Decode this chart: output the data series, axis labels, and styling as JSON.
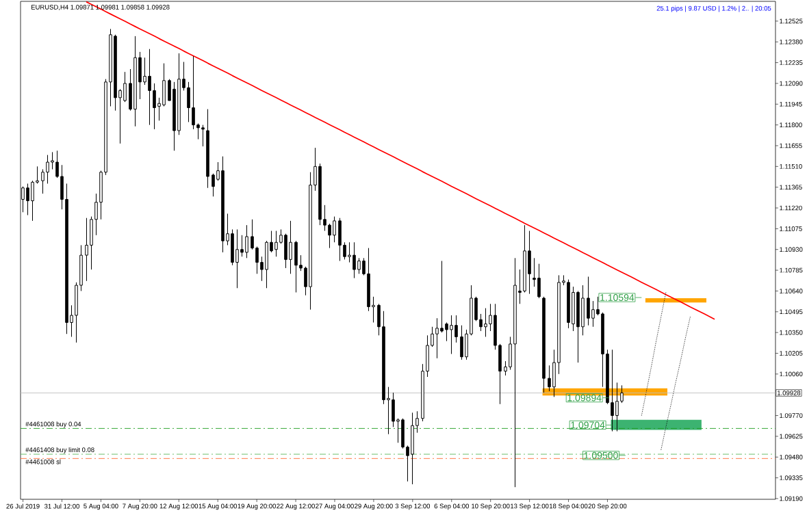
{
  "chart_data": {
    "type": "candlestick",
    "title": "EURUSD,H4 1.09871 1.09981 1.09858 1.09928",
    "color": "#000000",
    "categories": [
      "26 Jul 2019",
      null,
      null,
      null,
      null,
      null,
      null,
      null,
      "31 Jul 12:00",
      null,
      null,
      null,
      null,
      null,
      null,
      null,
      "5 Aug 04:00",
      null,
      null,
      null,
      null,
      null,
      null,
      null,
      "7 Aug 20:00",
      null,
      null,
      null,
      null,
      null,
      null,
      null,
      "12 Aug 12:00",
      null,
      null,
      null,
      null,
      null,
      null,
      null,
      "15 Aug 04:00",
      null,
      null,
      null,
      null,
      null,
      null,
      null,
      "19 Aug 20:00",
      null,
      null,
      null,
      null,
      null,
      null,
      null,
      "22 Aug 12:00",
      null,
      null,
      null,
      null,
      null,
      null,
      null,
      "27 Aug 04:00",
      null,
      null,
      null,
      null,
      null,
      null,
      null,
      "29 Aug 20:00",
      null,
      null,
      null,
      null,
      null,
      null,
      null,
      "3 Sep 12:00",
      null,
      null,
      null,
      null,
      null,
      null,
      null,
      "6 Sep 04:00",
      null,
      null,
      null,
      null,
      null,
      null,
      null,
      "10 Sep 20:00",
      null,
      null,
      null,
      null,
      null,
      null,
      null,
      "13 Sep 12:00",
      null,
      null,
      null,
      null,
      null,
      null,
      null,
      "18 Sep 04:00",
      null,
      null,
      null,
      null,
      null,
      null,
      null,
      "20 Sep 20:00",
      null,
      null,
      null,
      null,
      null,
      null,
      null,
      null,
      null,
      null,
      null,
      null,
      null,
      null,
      null,
      null,
      null,
      null,
      null,
      null,
      null,
      null,
      null,
      null,
      null,
      null,
      null,
      null,
      null,
      null,
      null,
      null,
      null,
      null
    ],
    "ohlc": [
      [
        1.1128,
        1.1137,
        1.1119,
        1.1136
      ],
      [
        1.1136,
        1.1139,
        1.1117,
        1.1127
      ],
      [
        1.1127,
        1.1141,
        1.1113,
        1.114
      ],
      [
        1.114,
        1.1151,
        1.1139,
        1.1141
      ],
      [
        1.1141,
        1.1149,
        1.1132,
        1.1147
      ],
      [
        1.1147,
        1.1159,
        1.1139,
        1.1154
      ],
      [
        1.1154,
        1.1161,
        1.1149,
        1.1155
      ],
      [
        1.1154,
        1.1162,
        1.1143,
        1.1144
      ],
      [
        1.1144,
        1.1152,
        1.1121,
        1.1128
      ],
      [
        1.1128,
        1.1139,
        1.1034,
        1.1042
      ],
      [
        1.1042,
        1.1054,
        1.1032,
        1.1047
      ],
      [
        1.1047,
        1.107,
        1.1028,
        1.1068
      ],
      [
        1.1068,
        1.1096,
        1.1064,
        1.1089
      ],
      [
        1.1089,
        1.1115,
        1.1071,
        1.1096
      ],
      [
        1.1096,
        1.1116,
        1.1079,
        1.1114
      ],
      [
        1.1114,
        1.1132,
        1.1103,
        1.1126
      ],
      [
        1.1126,
        1.1148,
        1.1114,
        1.1147
      ],
      [
        1.1147,
        1.1212,
        1.1145,
        1.121
      ],
      [
        1.121,
        1.1247,
        1.1193,
        1.1243
      ],
      [
        1.1242,
        1.1243,
        1.119,
        1.1199
      ],
      [
        1.1199,
        1.1205,
        1.1167,
        1.1204
      ],
      [
        1.1197,
        1.1217,
        1.1196,
        1.1209
      ],
      [
        1.1209,
        1.1219,
        1.119,
        1.1191
      ],
      [
        1.1191,
        1.1242,
        1.1179,
        1.1227
      ],
      [
        1.1227,
        1.1231,
        1.1198,
        1.121
      ],
      [
        1.121,
        1.1227,
        1.1208,
        1.1214
      ],
      [
        1.1214,
        1.1233,
        1.118,
        1.1204
      ],
      [
        1.1204,
        1.1209,
        1.1177,
        1.1192
      ],
      [
        1.1193,
        1.1199,
        1.1183,
        1.1195
      ],
      [
        1.1194,
        1.1223,
        1.1193,
        1.1211
      ],
      [
        1.1211,
        1.1212,
        1.1197,
        1.1197
      ],
      [
        1.1205,
        1.121,
        1.1162,
        1.1176
      ],
      [
        1.1176,
        1.123,
        1.1173,
        1.1212
      ],
      [
        1.1212,
        1.1224,
        1.1204,
        1.1206
      ],
      [
        1.1206,
        1.121,
        1.1182,
        1.1192
      ],
      [
        1.1192,
        1.1228,
        1.1177,
        1.118
      ],
      [
        1.118,
        1.1181,
        1.117,
        1.1178
      ],
      [
        1.1178,
        1.118,
        1.1165,
        1.1177
      ],
      [
        1.1176,
        1.1191,
        1.1136,
        1.1144
      ],
      [
        1.1145,
        1.1146,
        1.113,
        1.1137
      ],
      [
        1.1142,
        1.1154,
        1.1141,
        1.1148
      ],
      [
        1.1148,
        1.1158,
        1.1091,
        1.1099
      ],
      [
        1.1099,
        1.1118,
        1.1096,
        1.1104
      ],
      [
        1.1104,
        1.1107,
        1.1082,
        1.1084
      ],
      [
        1.1084,
        1.1107,
        1.1066,
        1.1093
      ],
      [
        1.1093,
        1.1103,
        1.1088,
        1.1091
      ],
      [
        1.1091,
        1.111,
        1.1087,
        1.1102
      ],
      [
        1.1102,
        1.1114,
        1.1093,
        1.1094
      ],
      [
        1.1094,
        1.1095,
        1.1076,
        1.1084
      ],
      [
        1.1084,
        1.1088,
        1.1071,
        1.1079
      ],
      [
        1.1079,
        1.1099,
        1.1066,
        1.1098
      ],
      [
        1.1098,
        1.1106,
        1.1091,
        1.1092
      ],
      [
        1.1093,
        1.1106,
        1.1088,
        1.1098
      ],
      [
        1.1098,
        1.1107,
        1.1097,
        1.1103
      ],
      [
        1.1103,
        1.1104,
        1.108,
        1.1086
      ],
      [
        1.1086,
        1.1113,
        1.1076,
        1.1098
      ],
      [
        1.1098,
        1.1099,
        1.1063,
        1.1082
      ],
      [
        1.1082,
        1.1089,
        1.1078,
        1.108
      ],
      [
        1.108,
        1.1081,
        1.1061,
        1.1067
      ],
      [
        1.1067,
        1.1147,
        1.1051,
        1.1138
      ],
      [
        1.1138,
        1.1164,
        1.1134,
        1.1151
      ],
      [
        1.1151,
        1.1153,
        1.111,
        1.1114
      ],
      [
        1.1114,
        1.1124,
        1.1106,
        1.111
      ],
      [
        1.111,
        1.1111,
        1.1094,
        1.1103
      ],
      [
        1.1103,
        1.1116,
        1.1098,
        1.1113
      ],
      [
        1.1113,
        1.1115,
        1.1085,
        1.1096
      ],
      [
        1.1096,
        1.1098,
        1.1086,
        1.1088
      ],
      [
        1.1088,
        1.1098,
        1.1084,
        1.1089
      ],
      [
        1.1089,
        1.1098,
        1.1073,
        1.1079
      ],
      [
        1.1079,
        1.1087,
        1.1076,
        1.1085
      ],
      [
        1.1085,
        1.1087,
        1.1075,
        1.1076
      ],
      [
        1.1076,
        1.1094,
        1.105,
        1.1053
      ],
      [
        1.1053,
        1.106,
        1.1042,
        1.1054
      ],
      [
        1.1054,
        1.1055,
        1.1033,
        1.1039
      ],
      [
        1.1039,
        1.105,
        1.0985,
        1.0988
      ],
      [
        1.0988,
        1.0997,
        1.0964,
        1.0989
      ],
      [
        1.0988,
        1.0993,
        1.0969,
        1.0973
      ],
      [
        1.0973,
        1.0975,
        1.0958,
        1.0974
      ],
      [
        1.0974,
        1.0975,
        1.0954,
        1.0955
      ],
      [
        1.0955,
        1.0956,
        1.0931,
        1.0949
      ],
      [
        1.095,
        1.0979,
        1.0929,
        1.097
      ],
      [
        1.097,
        1.098,
        1.0965,
        1.0975
      ],
      [
        1.0975,
        1.1013,
        1.0973,
        1.1008
      ],
      [
        1.1008,
        1.1033,
        1.1004,
        1.1026
      ],
      [
        1.1026,
        1.1039,
        1.1025,
        1.1034
      ],
      [
        1.1034,
        1.1045,
        1.1017,
        1.1038
      ],
      [
        1.1038,
        1.1085,
        1.1035,
        1.1036
      ],
      [
        1.1041,
        1.1042,
        1.1029,
        1.1037
      ],
      [
        1.1037,
        1.1047,
        1.102,
        1.104
      ],
      [
        1.104,
        1.1047,
        1.1028,
        1.1032
      ],
      [
        1.1032,
        1.104,
        1.1016,
        1.1018
      ],
      [
        1.1018,
        1.1037,
        1.1016,
        1.1034
      ],
      [
        1.1034,
        1.1068,
        1.1033,
        1.1059
      ],
      [
        1.1059,
        1.106,
        1.1043,
        1.1044
      ],
      [
        1.1044,
        1.1048,
        1.1036,
        1.1039
      ],
      [
        1.1039,
        1.1052,
        1.1032,
        1.1041
      ],
      [
        1.1041,
        1.1055,
        1.1036,
        1.1047
      ],
      [
        1.1047,
        1.1055,
        1.1023,
        1.1026
      ],
      [
        1.1026,
        1.1027,
        1.0985,
        1.1008
      ],
      [
        1.1008,
        1.1015,
        1.1005,
        1.1011
      ],
      [
        1.1011,
        1.1032,
        1.1009,
        1.1027
      ],
      [
        1.1027,
        1.1087,
        1.0927,
        1.1068
      ],
      [
        1.1064,
        1.1079,
        1.1055,
        1.1063
      ],
      [
        1.1064,
        1.111,
        1.1063,
        1.1092
      ],
      [
        1.1092,
        1.1106,
        1.1062,
        1.1076
      ],
      [
        1.1073,
        1.1087,
        1.1067,
        1.1072
      ],
      [
        1.1073,
        1.1083,
        1.1059,
        1.106
      ],
      [
        1.1059,
        1.106,
        1.0993,
        1.1003
      ],
      [
        1.1003,
        1.1012,
        1.0994,
        1.0997
      ],
      [
        1.0997,
        1.1023,
        1.099,
        1.1014
      ],
      [
        1.1014,
        1.1075,
        1.1006,
        1.107
      ],
      [
        1.107,
        1.1075,
        1.1068,
        1.1071
      ],
      [
        1.107,
        1.1072,
        1.1038,
        1.1042
      ],
      [
        1.1041,
        1.1067,
        1.1036,
        1.1063
      ],
      [
        1.1063,
        1.1064,
        1.1014,
        1.1039
      ],
      [
        1.1039,
        1.1068,
        1.1033,
        1.1059
      ],
      [
        1.1059,
        1.1074,
        1.104,
        1.1045
      ],
      [
        1.1045,
        1.1057,
        1.1039,
        1.1051
      ],
      [
        1.1051,
        1.106,
        1.1047,
        1.1048
      ],
      [
        1.1048,
        1.1049,
        1.0997,
        1.102
      ],
      [
        1.102,
        1.1023,
        1.0985,
        1.0986
      ],
      [
        1.0986,
        1.1023,
        1.0966,
        1.0977
      ],
      [
        1.0977,
        1.1,
        1.0966,
        1.0987
      ],
      [
        1.09871,
        1.09981,
        1.09858,
        1.09928
      ],
      null,
      null,
      null,
      null,
      null,
      null,
      null,
      null,
      null,
      null,
      null,
      null,
      null,
      null,
      null,
      null,
      null,
      null,
      null,
      null,
      null,
      null,
      null,
      null,
      null,
      null,
      null,
      null,
      null,
      null,
      null
    ],
    "series": [
      {
        "type": "line",
        "color": "#ff0000",
        "values": [
          null,
          null,
          null,
          null,
          null,
          null,
          null,
          null,
          null,
          null,
          null,
          null,
          null,
          1.1266,
          1.12643,
          1.12626,
          1.12609,
          1.12591,
          1.12574,
          1.12557,
          1.1254,
          1.12523,
          1.12505,
          1.12488,
          1.12471,
          1.12454,
          1.12437,
          1.1242,
          1.12402,
          1.12385,
          1.12368,
          1.12351,
          1.12334,
          1.12316,
          1.12299,
          1.12282,
          1.12265,
          1.12248,
          1.1223,
          1.12213,
          1.12196,
          1.12179,
          1.12162,
          1.12144,
          1.12127,
          1.1211,
          1.12093,
          1.12076,
          1.12059,
          1.12041,
          1.12024,
          1.12007,
          1.1199,
          1.11973,
          1.11956,
          1.11938,
          1.11921,
          1.11904,
          1.11887,
          1.1187,
          1.11852,
          1.11835,
          1.11818,
          1.11801,
          1.11784,
          1.11767,
          1.11749,
          1.11732,
          1.11715,
          1.11698,
          1.11681,
          1.11663,
          1.11646,
          1.11629,
          1.11612,
          1.11595,
          1.11578,
          1.1156,
          1.11543,
          1.11526,
          1.11509,
          1.11492,
          1.11474,
          1.11457,
          1.1144,
          1.11423,
          1.11406,
          1.11389,
          1.11371,
          1.11354,
          1.11337,
          1.1132,
          1.11303,
          1.11285,
          1.11268,
          1.11251,
          1.11234,
          1.11217,
          1.112,
          1.11182,
          1.11165,
          1.11148,
          1.11131,
          1.11113,
          1.11096,
          1.11079,
          1.11062,
          1.11045,
          1.11028,
          1.1101,
          1.10993,
          1.10976,
          1.10959,
          1.10942,
          1.10925,
          1.10907,
          1.1089,
          1.10873,
          1.10856,
          1.10839,
          1.10821,
          1.10804,
          1.10787,
          1.1077,
          1.10753,
          1.10736,
          1.10718,
          1.10701,
          1.10684,
          1.10667,
          1.1065,
          1.10632,
          1.10615,
          1.10598,
          1.10581,
          1.10564,
          1.10547,
          1.10529,
          1.10512,
          1.10495,
          1.10478,
          1.10461,
          1.10443,
          null,
          null,
          null,
          null,
          null,
          null,
          null,
          null,
          null,
          null,
          null,
          null
        ]
      },
      {
        "type": "line",
        "color": "#000000",
        "line_style": "dotted",
        "values": [
          null,
          null,
          null,
          null,
          null,
          null,
          null,
          null,
          null,
          null,
          null,
          null,
          null,
          null,
          null,
          null,
          null,
          null,
          null,
          null,
          null,
          null,
          null,
          null,
          null,
          null,
          null,
          null,
          null,
          null,
          null,
          null,
          null,
          null,
          null,
          null,
          null,
          null,
          null,
          null,
          null,
          null,
          null,
          null,
          null,
          null,
          null,
          null,
          null,
          null,
          null,
          null,
          null,
          null,
          null,
          null,
          null,
          null,
          null,
          null,
          null,
          null,
          null,
          null,
          null,
          null,
          null,
          null,
          null,
          null,
          null,
          null,
          null,
          null,
          null,
          null,
          null,
          null,
          null,
          null,
          null,
          null,
          null,
          null,
          null,
          null,
          null,
          null,
          null,
          null,
          null,
          null,
          null,
          null,
          null,
          null,
          null,
          null,
          null,
          null,
          null,
          null,
          null,
          null,
          null,
          null,
          null,
          null,
          null,
          null,
          null,
          null,
          null,
          null,
          null,
          null,
          null,
          null,
          null,
          null,
          null,
          null,
          null,
          null,
          null,
          null,
          null,
          1.0977,
          1.0994,
          1.1011,
          1.1029,
          1.1046,
          1.1063,
          null,
          null,
          null,
          null,
          null,
          null,
          null,
          null,
          null,
          null,
          null,
          null,
          null,
          null,
          null,
          null,
          null,
          null,
          null,
          null,
          null,
          null
        ]
      },
      {
        "type": "line",
        "color": "#000000",
        "line_style": "dotted",
        "values": [
          null,
          null,
          null,
          null,
          null,
          null,
          null,
          null,
          null,
          null,
          null,
          null,
          null,
          null,
          null,
          null,
          null,
          null,
          null,
          null,
          null,
          null,
          null,
          null,
          null,
          null,
          null,
          null,
          null,
          null,
          null,
          null,
          null,
          null,
          null,
          null,
          null,
          null,
          null,
          null,
          null,
          null,
          null,
          null,
          null,
          null,
          null,
          null,
          null,
          null,
          null,
          null,
          null,
          null,
          null,
          null,
          null,
          null,
          null,
          null,
          null,
          null,
          null,
          null,
          null,
          null,
          null,
          null,
          null,
          null,
          null,
          null,
          null,
          null,
          null,
          null,
          null,
          null,
          null,
          null,
          null,
          null,
          null,
          null,
          null,
          null,
          null,
          null,
          null,
          null,
          null,
          null,
          null,
          null,
          null,
          null,
          null,
          null,
          null,
          null,
          null,
          null,
          null,
          null,
          null,
          null,
          null,
          null,
          null,
          null,
          null,
          null,
          null,
          null,
          null,
          null,
          null,
          null,
          null,
          null,
          null,
          null,
          null,
          null,
          null,
          null,
          null,
          null,
          null,
          null,
          null,
          1.0953,
          1.0969,
          1.0984,
          1.1,
          1.1015,
          1.1031,
          1.1046,
          null,
          null,
          null,
          null,
          null,
          null,
          null,
          null,
          null,
          null,
          null,
          null,
          null,
          null,
          null,
          null,
          null
        ]
      }
    ],
    "bands": [
      {
        "axis": "y",
        "from": 1.0991,
        "to": 1.0996,
        "color": "#ffa500"
      },
      {
        "axis": "y",
        "from": 1.1056,
        "to": 1.1059,
        "color": "#ffa500"
      },
      {
        "axis": "y",
        "from": 1.0967,
        "to": 1.0974,
        "color": "#3cb371"
      }
    ],
    "ref_lines": [
      {
        "axis": "y",
        "value": 1.0968,
        "label": "#4461008 buy 0.04",
        "color": "#1f9e1f",
        "line_style": "dashdot"
      },
      {
        "axis": "y",
        "value": 1.095,
        "label": "#4461408 buy limit 0.08",
        "color": "#5cb85c",
        "line_style": "dashdot"
      },
      {
        "axis": "y",
        "value": 1.0947,
        "label": "#4461008 sl",
        "color": "#ff6a33",
        "line_style": "dashdot"
      },
      {
        "axis": "y",
        "value": 1.09928,
        "label": "1.09928",
        "color": "#c0c0c0"
      }
    ],
    "annotations": [
      "25.1 pips | 9.87 USD | 1.2% | 2.. | 20:05",
      "1.10594",
      "1.09894",
      "1.09704",
      "1.09500"
    ],
    "ylim": [
      1.09185,
      1.12663
    ],
    "yticks": [
      {
        "value": 1.0919,
        "label": "1.09190"
      },
      1.09335,
      {
        "value": 1.0948,
        "label": "1.09480"
      },
      1.09625,
      {
        "value": 1.0977,
        "label": "1.09770"
      },
      {
        "value": 1.1006,
        "label": "1.10060"
      },
      1.10205,
      {
        "value": 1.1035,
        "label": "1.10350"
      },
      1.10495,
      {
        "value": 1.1064,
        "label": "1.10640"
      },
      1.10785,
      {
        "value": 1.1093,
        "label": "1.10930"
      },
      1.11075,
      {
        "value": 1.1122,
        "label": "1.11220"
      },
      1.11365,
      {
        "value": 1.1151,
        "label": "1.11510"
      },
      1.11655,
      {
        "value": 1.118,
        "label": "1.11800"
      },
      1.11945,
      {
        "value": 1.1209,
        "label": "1.12090"
      },
      1.12235,
      {
        "value": 1.1238,
        "label": "1.12380"
      },
      1.12525
    ]
  }
}
